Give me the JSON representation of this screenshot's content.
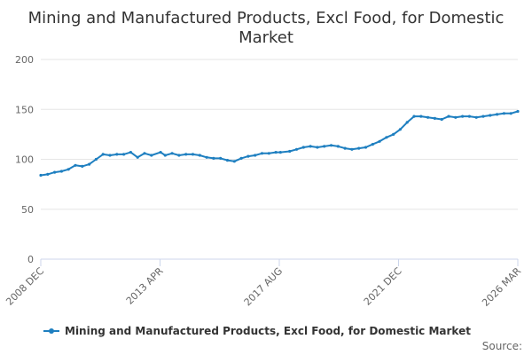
{
  "chart_data": {
    "type": "line",
    "title_lines": [
      "Mining and Manufactured Products, Excl Food, for Domestic",
      "Market"
    ],
    "xlabel": "",
    "ylabel": "",
    "ylim": [
      0,
      200
    ],
    "yticks": [
      0,
      50,
      100,
      150,
      200
    ],
    "xticks": [
      "2008 DEC",
      "2013 APR",
      "2017 AUG",
      "2021 DEC",
      "2026 MAR"
    ],
    "grid": true,
    "legend_position": "bottom",
    "series_color": "#1e7fc0",
    "source_label": "Source:",
    "series": [
      {
        "name": "Mining and Manufactured Products, Excl Food, for Domestic Market",
        "x": [
          "2008-12",
          "2009-03",
          "2009-06",
          "2009-09",
          "2009-12",
          "2010-03",
          "2010-06",
          "2010-09",
          "2010-12",
          "2011-03",
          "2011-06",
          "2011-09",
          "2011-12",
          "2012-03",
          "2012-06",
          "2012-09",
          "2012-12",
          "2013-04",
          "2013-06",
          "2013-09",
          "2013-12",
          "2014-03",
          "2014-06",
          "2014-09",
          "2014-12",
          "2015-03",
          "2015-06",
          "2015-09",
          "2015-12",
          "2016-03",
          "2016-06",
          "2016-09",
          "2016-12",
          "2017-03",
          "2017-06",
          "2017-08",
          "2017-12",
          "2018-03",
          "2018-06",
          "2018-09",
          "2018-12",
          "2019-03",
          "2019-06",
          "2019-09",
          "2019-12",
          "2020-03",
          "2020-06",
          "2020-09",
          "2020-12",
          "2021-03",
          "2021-06",
          "2021-09",
          "2021-12",
          "2022-03",
          "2022-06",
          "2022-09",
          "2022-12",
          "2023-03",
          "2023-06",
          "2023-09",
          "2023-12",
          "2024-03",
          "2024-06",
          "2024-09",
          "2024-12",
          "2025-03",
          "2025-06",
          "2025-09",
          "2025-12",
          "2026-03"
        ],
        "values": [
          84,
          85,
          87,
          88,
          90,
          94,
          93,
          95,
          100,
          105,
          104,
          105,
          105,
          107,
          102,
          106,
          104,
          107,
          104,
          106,
          104,
          105,
          105,
          104,
          102,
          101,
          101,
          99,
          98,
          101,
          103,
          104,
          106,
          106,
          107,
          107,
          108,
          110,
          112,
          113,
          112,
          113,
          114,
          113,
          111,
          110,
          111,
          112,
          115,
          118,
          122,
          125,
          130,
          137,
          143,
          143,
          142,
          141,
          140,
          143,
          142,
          143,
          143,
          142,
          143,
          144,
          145,
          146,
          146,
          148
        ]
      }
    ]
  }
}
